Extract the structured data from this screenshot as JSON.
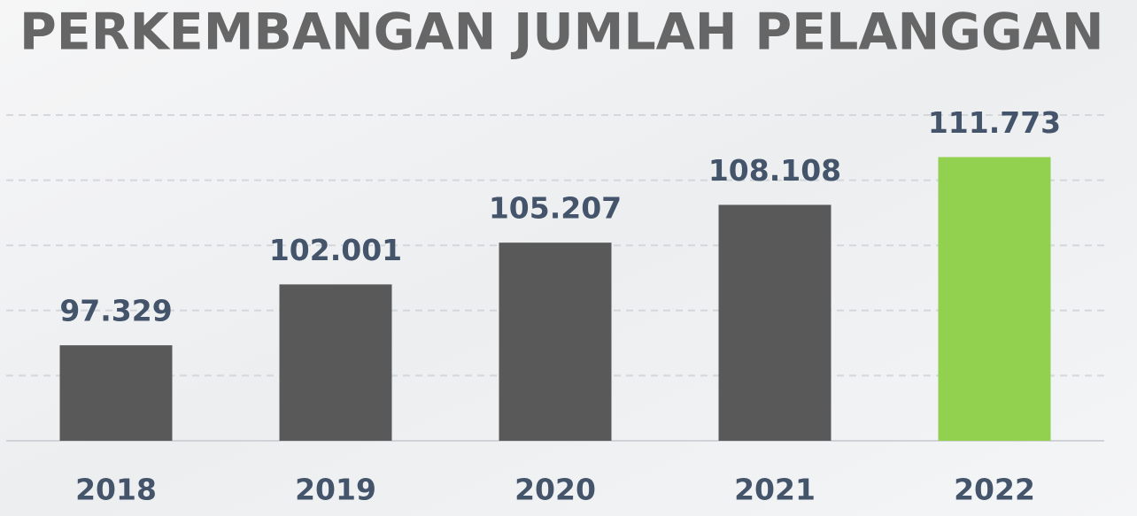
{
  "chart_data": {
    "type": "bar",
    "title": "PERKEMBANGAN JUMLAH PELANGGAN",
    "categories": [
      "2018",
      "2019",
      "2020",
      "2021",
      "2022"
    ],
    "values": [
      97329,
      102001,
      105207,
      108108,
      111773
    ],
    "value_labels": [
      "97.329",
      "102.001",
      "105.207",
      "108.108",
      "111.773"
    ],
    "colors": [
      "#595959",
      "#595959",
      "#595959",
      "#595959",
      "#92d050"
    ],
    "ylim": [
      90000,
      115000
    ],
    "yticks": [
      90000,
      95000,
      100000,
      105000,
      110000,
      115000
    ],
    "grid": true
  }
}
